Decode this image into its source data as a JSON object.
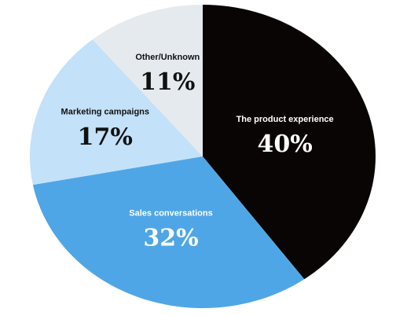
{
  "chart_data": {
    "type": "pie",
    "categories": [
      "The product experience",
      "Sales conversations",
      "Marketing campaigns",
      "Other/Unknown"
    ],
    "values": [
      40,
      32,
      17,
      11
    ],
    "value_labels": [
      "40%",
      "32%",
      "17%",
      "11%"
    ],
    "colors": [
      "#0a0505",
      "#4fa6e6",
      "#c3e1f8",
      "#e5eaef"
    ]
  }
}
